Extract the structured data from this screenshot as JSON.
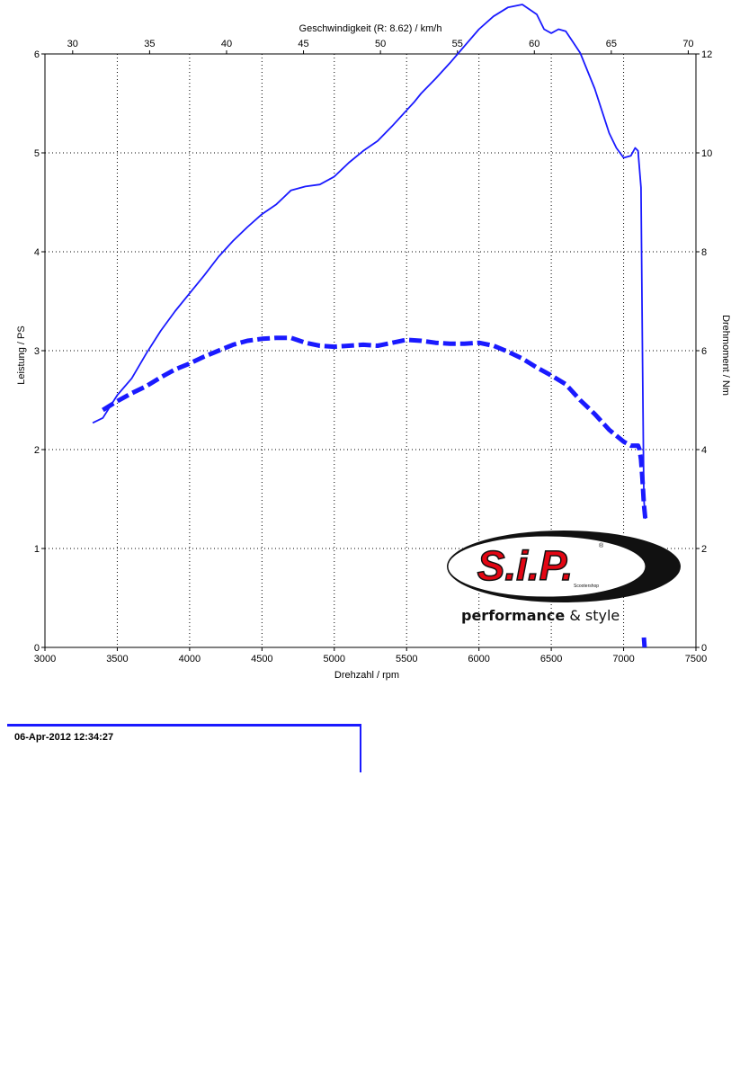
{
  "chart_data": {
    "type": "line",
    "title": "",
    "xlabel": "Drehzahl / rpm",
    "ylabel": "Leistung / PS",
    "y2label": "Drehmoment / Nm",
    "x2label": "Geschwindigkeit (R: 8.62) / km/h",
    "xlim": [
      3000,
      7500
    ],
    "ylim": [
      0,
      6
    ],
    "y2lim": [
      0,
      12
    ],
    "x2lim": [
      28.2,
      70.5
    ],
    "xticks": [
      3000,
      3500,
      4000,
      4500,
      5000,
      5500,
      6000,
      6500,
      7000,
      7500
    ],
    "yticks": [
      0,
      1,
      2,
      3,
      4,
      5,
      6
    ],
    "y2ticks": [
      0,
      2,
      4,
      6,
      8,
      10,
      12
    ],
    "x2ticks": [
      30,
      35,
      40,
      45,
      50,
      55,
      60,
      65,
      70
    ],
    "grid": true,
    "series": [
      {
        "name": "",
        "axis": "y2",
        "style": "solid",
        "color": "#1a1aff",
        "x": [
          3330,
          3400,
          3500,
          3600,
          3700,
          3800,
          3900,
          4000,
          4100,
          4200,
          4300,
          4400,
          4500,
          4600,
          4650,
          4700,
          4800,
          4900,
          5000,
          5100,
          5200,
          5300,
          5400,
          5500,
          5550,
          5600,
          5700,
          5800,
          5900,
          6000,
          6100,
          6200,
          6300,
          6400,
          6450,
          6500,
          6550,
          6600,
          6700,
          6800,
          6900,
          6950,
          7000,
          7050,
          7080,
          7100,
          7120,
          7130,
          7140,
          7150
        ],
        "y": [
          4.54,
          4.64,
          5.1,
          5.44,
          5.94,
          6.4,
          6.8,
          7.16,
          7.52,
          7.9,
          8.22,
          8.5,
          8.76,
          8.96,
          9.1,
          9.24,
          9.32,
          9.36,
          9.52,
          9.8,
          10.04,
          10.24,
          10.54,
          10.86,
          11.02,
          11.2,
          11.5,
          11.82,
          12.16,
          12.5,
          12.76,
          12.94,
          13.0,
          12.8,
          12.5,
          12.42,
          12.5,
          12.46,
          12.02,
          11.3,
          10.4,
          10.1,
          9.9,
          9.94,
          10.1,
          10.04,
          9.3,
          6.0,
          3.0,
          2.6
        ]
      },
      {
        "name": "",
        "axis": "y",
        "style": "dashed",
        "color": "#1a1aff",
        "x": [
          3400,
          3500,
          3600,
          3700,
          3800,
          3900,
          4000,
          4100,
          4200,
          4300,
          4400,
          4500,
          4600,
          4700,
          4800,
          4900,
          5000,
          5100,
          5200,
          5300,
          5400,
          5500,
          5600,
          5700,
          5800,
          5900,
          6000,
          6100,
          6200,
          6300,
          6400,
          6500,
          6600,
          6700,
          6800,
          6900,
          7000,
          7050,
          7100,
          7110,
          7120,
          7130,
          7140,
          7150
        ],
        "y": [
          2.4,
          2.49,
          2.57,
          2.64,
          2.73,
          2.81,
          2.87,
          2.94,
          3.0,
          3.06,
          3.1,
          3.12,
          3.13,
          3.13,
          3.08,
          3.05,
          3.04,
          3.05,
          3.06,
          3.05,
          3.08,
          3.11,
          3.1,
          3.08,
          3.07,
          3.07,
          3.08,
          3.05,
          2.99,
          2.92,
          2.83,
          2.75,
          2.66,
          2.5,
          2.36,
          2.2,
          2.08,
          2.04,
          2.04,
          2.0,
          1.9,
          1.7,
          1.45,
          1.3
        ]
      },
      {
        "name": "",
        "axis": "y",
        "style": "dashed",
        "color": "#1a1aff",
        "x": [
          7140,
          7145
        ],
        "y": [
          0.1,
          0.0
        ]
      }
    ]
  },
  "logo": {
    "brand": "S.i.P.",
    "tagline_bold": "performance",
    "tagline_rest": " & style",
    "small_text": "Scootershop",
    "registered": "®"
  },
  "footer": {
    "timestamp": "06-Apr-2012 12:34:27"
  },
  "colors": {
    "line": "#1a1aff",
    "logo_red": "#e30613",
    "logo_black": "#111111"
  }
}
